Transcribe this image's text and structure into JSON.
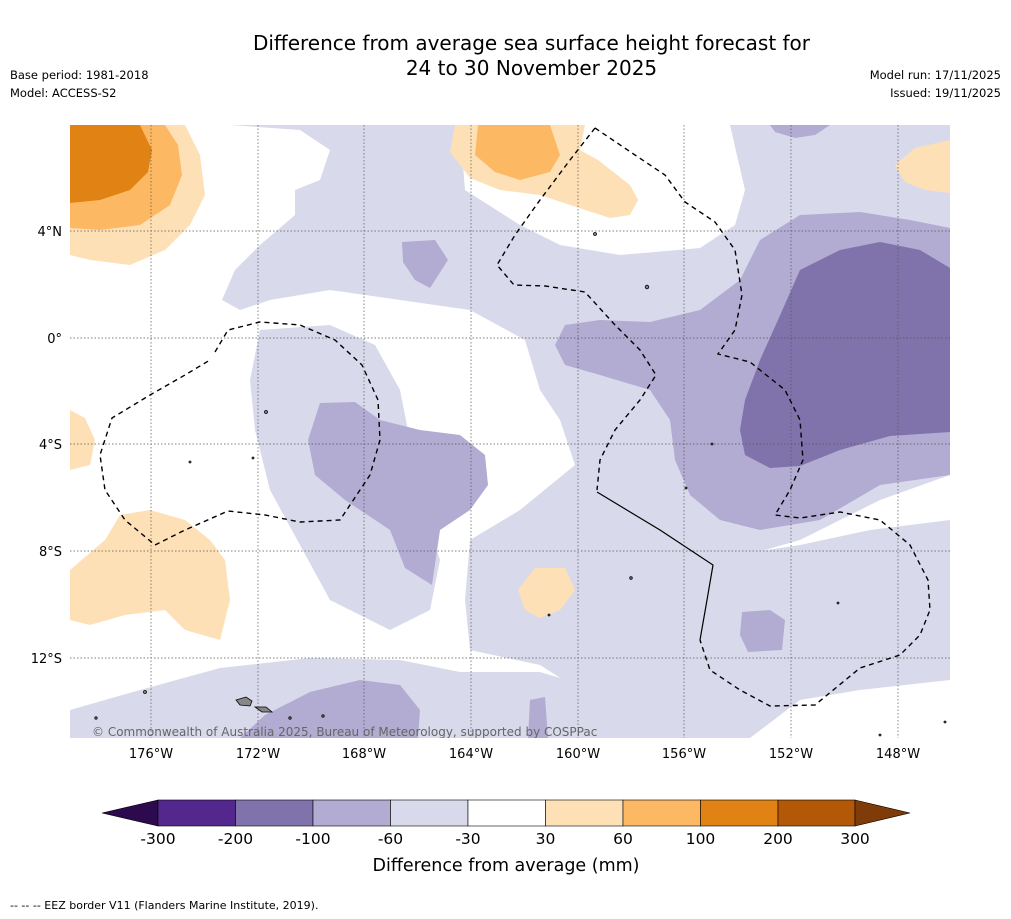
{
  "title": {
    "line1": "Difference from average sea surface height forecast for",
    "line2": "24 to 30 November 2025"
  },
  "meta_left": {
    "base_period": "Base period: 1981-2018",
    "model": "Model: ACCESS-S2"
  },
  "meta_right": {
    "model_run": "Model run: 17/11/2025",
    "issued": "Issued: 19/11/2025"
  },
  "map": {
    "latitude_labels": [
      "4°N",
      "0°",
      "4°S",
      "8°S",
      "12°S"
    ],
    "longitude_labels": [
      "176°W",
      "172°W",
      "168°W",
      "164°W",
      "160°W",
      "156°W",
      "152°W",
      "148°W"
    ],
    "copyright": "© Commonwealth of Australia 2025, Bureau of Meteorology, supported by COSPPac"
  },
  "colorbar": {
    "title": "Difference from average (mm)",
    "ticks": [
      "-300",
      "-200",
      "-100",
      "-60",
      "-30",
      "30",
      "60",
      "100",
      "200",
      "300"
    ],
    "colors": {
      "below_min": "#2d0a4d",
      "neg300_neg200": "#54278f",
      "neg200_neg100": "#8073ac",
      "neg100_neg60": "#b2abd2",
      "neg60_neg30": "#d8daeb",
      "neg30_30": "#ffffff",
      "pos30_60": "#fee0b6",
      "pos60_100": "#fdb863",
      "pos100_200": "#e08214",
      "pos200_300": "#b35806",
      "above_max": "#7f3b08"
    }
  },
  "footnote": "--  --  -- EEZ border V11 (Flanders Marine Institute, 2019)."
}
